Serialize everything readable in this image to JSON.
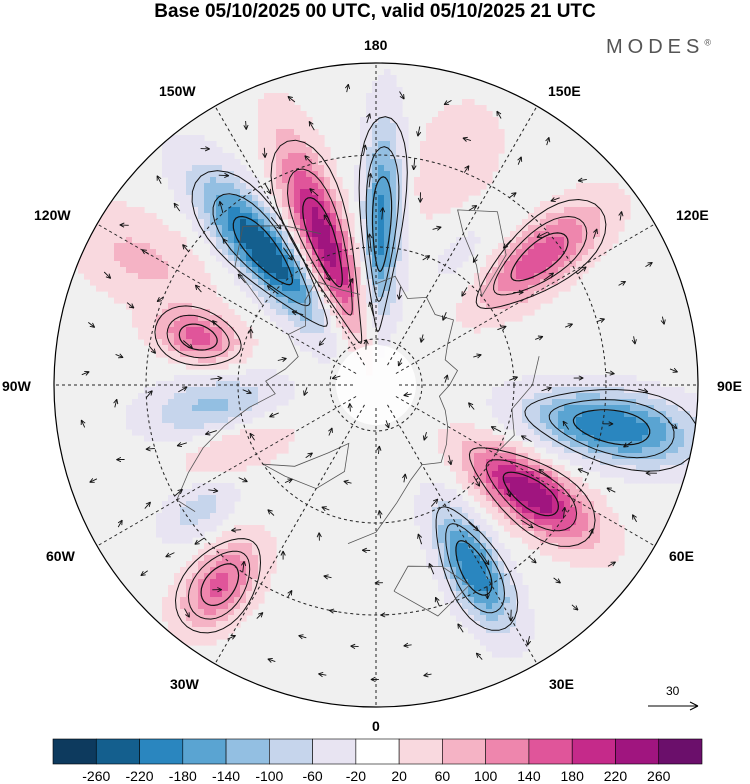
{
  "title": "Base 05/10/2025 00 UTC, valid 05/10/2025 21 UTC",
  "brand": {
    "name": "MODES",
    "mark": "®"
  },
  "longitude_labels": {
    "n180": "180",
    "n150w": "150W",
    "n150e": "150E",
    "n120w": "120W",
    "n120e": "120E",
    "n90w": "90W",
    "n90e": "90E",
    "n60w": "60W",
    "n60e": "60E",
    "n30w": "30W",
    "n30e": "30E",
    "n0": "0"
  },
  "reference_vector": {
    "value": "30"
  },
  "colorbar": {
    "ticks": [
      "-260",
      "-220",
      "-180",
      "-140",
      "-100",
      "-60",
      "-20",
      "20",
      "60",
      "100",
      "140",
      "180",
      "220",
      "260"
    ],
    "colors": [
      "#0d3a5e",
      "#145f8e",
      "#2a86bf",
      "#5aa4d2",
      "#93bfe2",
      "#c6d5ec",
      "#e8e4f2",
      "#ffffff",
      "#f9d9df",
      "#f5b3c5",
      "#ee86ad",
      "#e0559a",
      "#c52a8a",
      "#a0157f",
      "#6b0f6b"
    ]
  },
  "anomaly_centers": [
    {
      "name": "pos-150w",
      "lon": -160,
      "colat": 33,
      "amp": 250,
      "sx": 8,
      "sy": 22
    },
    {
      "name": "neg-170w",
      "lon": 178,
      "colat": 35,
      "amp": -200,
      "sx": 6,
      "sy": 22
    },
    {
      "name": "neg-130w",
      "lon": -140,
      "colat": 38,
      "amp": -260,
      "sx": 9,
      "sy": 20
    },
    {
      "name": "pos-120e",
      "lon": 128,
      "colat": 45,
      "amp": 170,
      "sx": 9,
      "sy": 16
    },
    {
      "name": "neg-90e",
      "lon": 80,
      "colat": 52,
      "amp": -220,
      "sx": 10,
      "sy": 18
    },
    {
      "name": "pos-60e",
      "lon": 55,
      "colat": 41,
      "amp": 260,
      "sx": 9,
      "sy": 15
    },
    {
      "name": "neg-30e",
      "lon": 28,
      "colat": 45,
      "amp": -220,
      "sx": 8,
      "sy": 14
    },
    {
      "name": "pos-100w",
      "lon": -105,
      "colat": 40,
      "amp": 150,
      "sx": 8,
      "sy": 9
    },
    {
      "name": "neg-80w",
      "lon": -82,
      "colat": 35,
      "amp": -120,
      "sx": 10,
      "sy": 15
    },
    {
      "name": "pos-40w",
      "lon": -38,
      "colat": 55,
      "amp": 150,
      "sx": 9,
      "sy": 11
    },
    {
      "name": "neg-55w",
      "lon": -55,
      "colat": 47,
      "amp": -80,
      "sx": 8,
      "sy": 9
    },
    {
      "name": "pos-70w",
      "lon": -68,
      "colat": 32,
      "amp": 70,
      "sx": 10,
      "sy": 14
    },
    {
      "name": "pos-165e",
      "lon": 160,
      "colat": 50,
      "amp": 50,
      "sx": 14,
      "sy": 16
    },
    {
      "name": "neg-150e",
      "lon": 148,
      "colat": 35,
      "amp": -40,
      "sx": 12,
      "sy": 12
    },
    {
      "name": "pos-115w",
      "lon": -118,
      "colat": 58,
      "amp": 70,
      "sx": 12,
      "sy": 16
    }
  ]
}
